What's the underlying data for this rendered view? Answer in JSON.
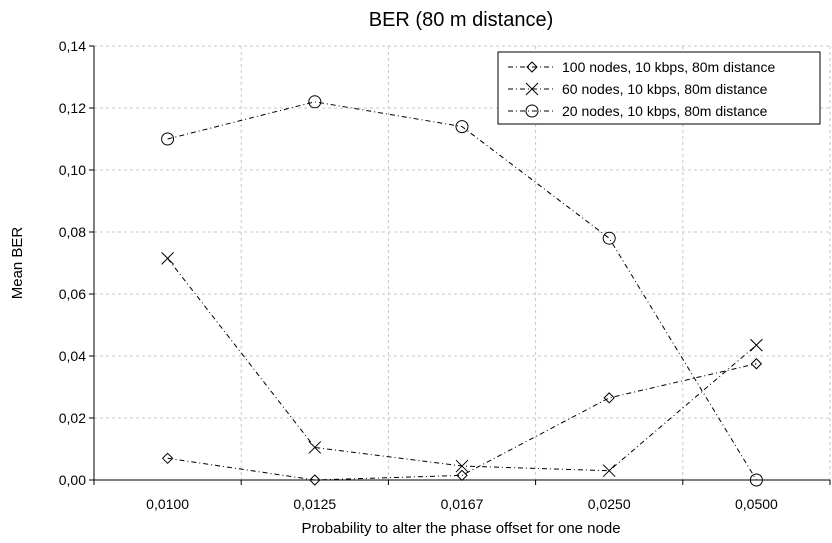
{
  "chart_data": {
    "type": "line",
    "title": "BER (80 m distance)",
    "xlabel": "Probability to alter the phase offset for one node",
    "ylabel": "Mean BER",
    "categories": [
      "0,0100",
      "0,0125",
      "0,0167",
      "0,0250",
      "0,0500"
    ],
    "ylim": [
      0,
      0.14
    ],
    "yticks": [
      0,
      0.02,
      0.04,
      0.06,
      0.08,
      0.1,
      0.12,
      0.14
    ],
    "ytick_labels": [
      "0,00",
      "0,02",
      "0,04",
      "0,06",
      "0,08",
      "0,10",
      "0,12",
      "0,14"
    ],
    "grid": true,
    "legend_position": "top-right",
    "series": [
      {
        "name": "100 nodes, 10 kbps, 80m distance",
        "marker": "diamond",
        "values": [
          0.007,
          0.0,
          0.0015,
          0.0265,
          0.0375
        ]
      },
      {
        "name": "60 nodes, 10 kbps, 80m distance",
        "marker": "x",
        "values": [
          0.0715,
          0.0105,
          0.0045,
          0.003,
          0.0435
        ]
      },
      {
        "name": "20 nodes, 10 kbps, 80m distance",
        "marker": "circle",
        "values": [
          0.11,
          0.122,
          0.114,
          0.078,
          0.0
        ]
      }
    ]
  }
}
